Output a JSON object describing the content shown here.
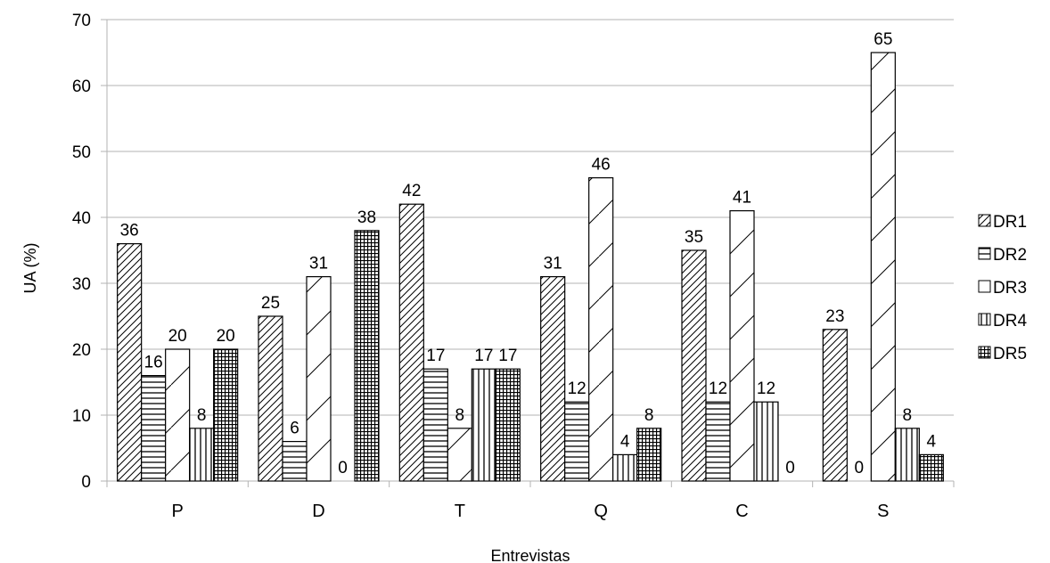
{
  "chart_data": {
    "type": "bar",
    "xlabel": "Entrevistas",
    "ylabel": "UA (%)",
    "ylim": [
      0,
      70
    ],
    "yticks": [
      0,
      10,
      20,
      30,
      40,
      50,
      60,
      70
    ],
    "grid": true,
    "legend": "right",
    "categories": [
      "P",
      "D",
      "T",
      "Q",
      "C",
      "S"
    ],
    "series": [
      {
        "name": "DR1",
        "pattern": "diagonal-dense",
        "values": [
          36,
          25,
          42,
          31,
          35,
          23
        ],
        "labels": [
          "36",
          "25",
          "42",
          "31",
          "35",
          "23"
        ]
      },
      {
        "name": "DR2",
        "pattern": "horizontal",
        "values": [
          16,
          6,
          17,
          12,
          12,
          0
        ],
        "labels": [
          "16",
          "6",
          "17",
          "12",
          "12",
          "0"
        ]
      },
      {
        "name": "DR3",
        "pattern": "diagonal-sparse",
        "values": [
          20,
          31,
          8,
          46,
          41,
          65
        ],
        "labels": [
          "20",
          "31",
          "8",
          "46",
          "41",
          "65"
        ]
      },
      {
        "name": "DR4",
        "pattern": "vertical",
        "values": [
          8,
          0,
          17,
          4,
          12,
          8
        ],
        "labels": [
          "8",
          "0",
          "17",
          "4",
          "12",
          "8"
        ]
      },
      {
        "name": "DR5",
        "pattern": "grid",
        "values": [
          20,
          38,
          17,
          8,
          0,
          4
        ],
        "labels": [
          "20",
          "38",
          "17",
          "8",
          "0",
          "4"
        ]
      }
    ],
    "colors": {
      "stroke": "#000000",
      "grid": "#b3b3b3",
      "background": "#ffffff"
    }
  }
}
